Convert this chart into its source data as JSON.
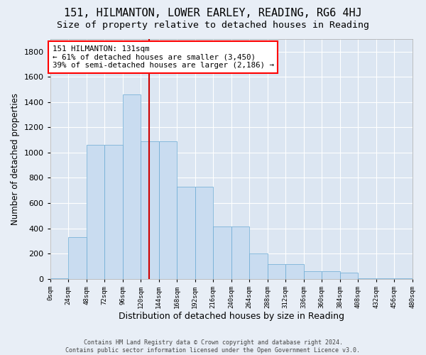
{
  "title": "151, HILMANTON, LOWER EARLEY, READING, RG6 4HJ",
  "subtitle": "Size of property relative to detached houses in Reading",
  "xlabel": "Distribution of detached houses by size in Reading",
  "ylabel": "Number of detached properties",
  "bar_color": "#c9dcf0",
  "bar_edge_color": "#6aaad4",
  "plot_bg_color": "#dce6f2",
  "fig_bg_color": "#e8eef6",
  "annotation_text": "151 HILMANTON: 131sqm\n← 61% of detached houses are smaller (3,450)\n39% of semi-detached houses are larger (2,186) →",
  "vline_x": 131,
  "vline_color": "#cc0000",
  "bin_edges": [
    0,
    24,
    48,
    72,
    96,
    120,
    144,
    168,
    192,
    216,
    240,
    264,
    288,
    312,
    336,
    360,
    384,
    408,
    432,
    456,
    480
  ],
  "bar_heights": [
    5,
    330,
    1060,
    1060,
    1460,
    1090,
    1090,
    730,
    730,
    415,
    415,
    200,
    115,
    115,
    60,
    60,
    50,
    5,
    5,
    5
  ],
  "ylim_max": 1900,
  "yticks": [
    0,
    200,
    400,
    600,
    800,
    1000,
    1200,
    1400,
    1600,
    1800
  ],
  "bin_labels": [
    "0sqm",
    "24sqm",
    "48sqm",
    "72sqm",
    "96sqm",
    "120sqm",
    "144sqm",
    "168sqm",
    "192sqm",
    "216sqm",
    "240sqm",
    "264sqm",
    "288sqm",
    "312sqm",
    "336sqm",
    "360sqm",
    "384sqm",
    "408sqm",
    "432sqm",
    "456sqm",
    "480sqm"
  ],
  "footer_text": "Contains HM Land Registry data © Crown copyright and database right 2024.\nContains public sector information licensed under the Open Government Licence v3.0."
}
